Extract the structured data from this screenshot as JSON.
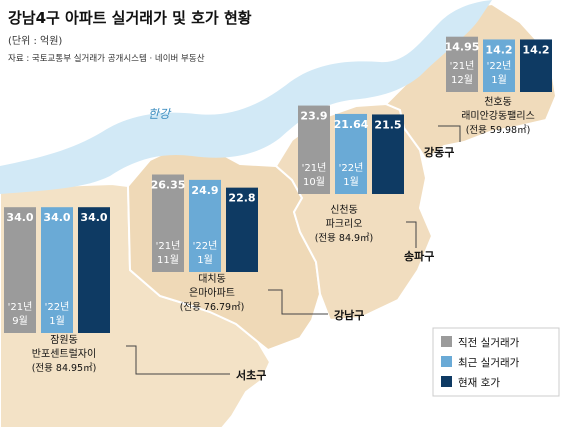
{
  "header": {
    "title": "강남4구 아파트 실거래가 및 호가 현황",
    "unit": "(단위 : 억원)",
    "source": "자료 : 국토교통부 실거래가 공개시스템 · 네이버 부동산"
  },
  "map": {
    "river_label": "한강",
    "districts": [
      "서초구",
      "강남구",
      "송파구",
      "강동구"
    ]
  },
  "legend": [
    {
      "label": "직전 실거래가",
      "color": "#9b9b9b"
    },
    {
      "label": "최근 실거래가",
      "color": "#6aaad6"
    },
    {
      "label": "현재 호가",
      "color": "#0e3a63"
    }
  ],
  "chart_data": {
    "type": "bar",
    "series_names": [
      "직전 실거래가",
      "최근 실거래가",
      "현재 호가"
    ],
    "groups": [
      {
        "district": "서초구",
        "area_name": "잠원동",
        "complex_name": "반포센트럴자이",
        "size_note": "(전용 84.95㎡)",
        "values": [
          34.0,
          34.0,
          34.0
        ],
        "value_labels": [
          "34.0",
          "34.0",
          "34.0"
        ],
        "date_labels": [
          [
            "'21년",
            "9월"
          ],
          [
            "'22년",
            "1월"
          ]
        ]
      },
      {
        "district": "강남구",
        "area_name": "대치동",
        "complex_name": "은마아파트",
        "size_note": "(전용 76.79㎡)",
        "values": [
          26.35,
          24.9,
          22.8
        ],
        "value_labels": [
          "26.35",
          "24.9",
          "22.8"
        ],
        "date_labels": [
          [
            "'21년",
            "11월"
          ],
          [
            "'22년",
            "1월"
          ]
        ]
      },
      {
        "district": "송파구",
        "area_name": "신천동",
        "complex_name": "파크리오",
        "size_note": "(전용 84.9㎡)",
        "values": [
          23.9,
          21.64,
          21.5
        ],
        "value_labels": [
          "23.9",
          "21.64",
          "21.5"
        ],
        "date_labels": [
          [
            "'21년",
            "10월"
          ],
          [
            "'22년",
            "1월"
          ]
        ]
      },
      {
        "district": "강동구",
        "area_name": "천호동",
        "complex_name": "래미안강동팰리스",
        "size_note": "(전용 59.98㎡)",
        "values": [
          14.95,
          14.2,
          14.2
        ],
        "value_labels": [
          "14.95",
          "14.2",
          "14.2"
        ],
        "date_labels": [
          [
            "'21년",
            "12월"
          ],
          [
            "'22년",
            "1월"
          ]
        ]
      }
    ]
  }
}
